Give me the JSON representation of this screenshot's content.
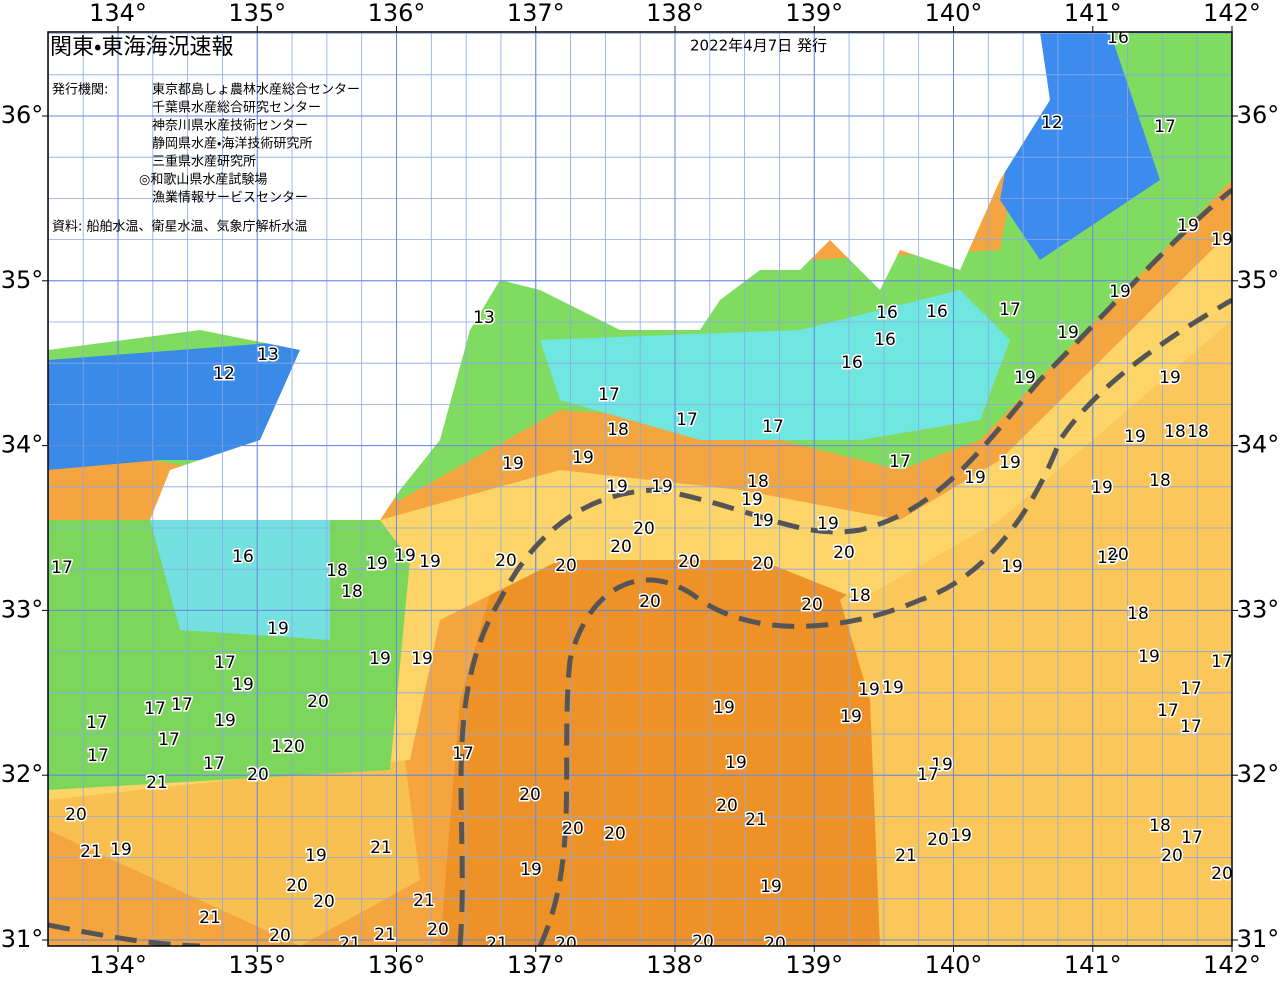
{
  "header": {
    "title": "関東・東海海況速報",
    "date": "2022年4月7日 発行",
    "issuer_label": "発行機関:",
    "issuers": [
      "東京都島しょ農林水産総合センター",
      "千葉県水産総合研究センター",
      "神奈川県水産技術センター",
      "静岡県水産・海洋技術研究所",
      "三重県水産研究所",
      "◎和歌山県水産試験場",
      "漁業情報サービスセンター"
    ],
    "source": "資料: 船舶水温、衛星水温、気象庁解析水温"
  },
  "map": {
    "longitudes": [
      {
        "value": 134,
        "label": "134°"
      },
      {
        "value": 135,
        "label": "135°"
      },
      {
        "value": 136,
        "label": "136°"
      },
      {
        "value": 137,
        "label": "137°"
      },
      {
        "value": 138,
        "label": "138°"
      },
      {
        "value": 139,
        "label": "139°"
      },
      {
        "value": 140,
        "label": "140°"
      },
      {
        "value": 141,
        "label": "141°"
      },
      {
        "value": 142,
        "label": "142°"
      }
    ],
    "latitudes": [
      {
        "value": 36,
        "label": "36°"
      },
      {
        "value": 35,
        "label": "35°"
      },
      {
        "value": 34,
        "label": "34°"
      },
      {
        "value": 33,
        "label": "33°"
      },
      {
        "value": 32,
        "label": "32°"
      },
      {
        "value": 31,
        "label": "31°"
      }
    ],
    "contour_labels": [
      16,
      16,
      12,
      17,
      19,
      19,
      19,
      17,
      19,
      16,
      16,
      16,
      16,
      19,
      19,
      17,
      17,
      17,
      18,
      19,
      18,
      18,
      17,
      19,
      19,
      19,
      19,
      19,
      18,
      18,
      19,
      19,
      19,
      19,
      19,
      20,
      20,
      20,
      20,
      20,
      20,
      20,
      16,
      18,
      19,
      19,
      19,
      17,
      19,
      19,
      20,
      20,
      20,
      18,
      18,
      19,
      18,
      19,
      19,
      19,
      17,
      17,
      19,
      19,
      19,
      17,
      17,
      17,
      20,
      19,
      19,
      17,
      17,
      19,
      17,
      17,
      17,
      20,
      17,
      17,
      17,
      20,
      19,
      19,
      17,
      21,
      20,
      20,
      21,
      20,
      20,
      20,
      19,
      17,
      18,
      19,
      21,
      21,
      19,
      20,
      21,
      19,
      20,
      19,
      20,
      20,
      21,
      21,
      20,
      20,
      21,
      21,
      21,
      20,
      20,
      20,
      20,
      12,
      13,
      13
    ]
  }
}
